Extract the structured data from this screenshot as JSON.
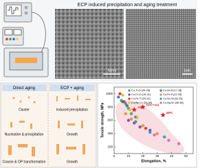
{
  "header": {
    "title": "ECP induced precipitation and aging treatment",
    "scale_bars": [
      "50nm",
      "1nm"
    ]
  },
  "diagram": {
    "left_header": "Direct aging",
    "right_header": "ECP + aging",
    "left_steps": [
      "Cluster",
      "Nucleation & precipitation",
      "Coarse & OP transformation"
    ],
    "right_steps": [
      "Induced precipitation",
      "Growth",
      "Growth"
    ]
  },
  "chart_data": {
    "type": "scatter",
    "x_label": "Elongation, %",
    "y_label": "Tensile strength, MPa",
    "xlim": [
      0,
      55
    ],
    "xticks": [
      0,
      10,
      20,
      30,
      40,
      50
    ],
    "ylim": [
      100,
      1100
    ],
    "yticks": [
      200,
      400,
      600,
      800,
      1000
    ],
    "series": [
      {
        "name": "Cu-Ti-Zr [26-28]",
        "color": "#3aa64a",
        "x": [
          5,
          8,
          10,
          12
        ],
        "values": [
          900,
          850,
          780,
          700
        ]
      },
      {
        "name": "Cu-Ni-Si [17-18]",
        "color": "#2f6fd0",
        "x": [
          3,
          6,
          9,
          15
        ],
        "values": [
          950,
          880,
          820,
          650
        ]
      },
      {
        "name": "Cu-Cr-Zr [19-21]",
        "color": "#7a3fb5",
        "x": [
          10,
          14,
          18,
          25
        ],
        "values": [
          600,
          560,
          500,
          450
        ]
      },
      {
        "name": "Cu-Fe-P [22-25]",
        "color": "#f08a24",
        "x": [
          8,
          12,
          20,
          30
        ],
        "values": [
          700,
          620,
          520,
          400
        ]
      },
      {
        "name": "Cu-Fe-Ti [29-31]",
        "color": "#d9302c",
        "x": [
          4,
          7,
          22
        ],
        "values": [
          1000,
          880,
          480
        ]
      },
      {
        "name": "Cu-Sn-Ni [32-33]",
        "color": "#1fa3a3",
        "x": [
          15,
          25,
          35
        ],
        "values": [
          580,
          420,
          350
        ]
      },
      {
        "name": "Cu-Be-Co [34-35]",
        "color": "#e0c020",
        "x": [
          6,
          11,
          16
        ],
        "values": [
          980,
          760,
          640
        ]
      },
      {
        "name": "Cu-Ag-Sn [36-38]",
        "color": "#e060b0",
        "x": [
          28,
          38,
          45
        ],
        "values": [
          380,
          300,
          250
        ]
      }
    ],
    "highlights": [
      {
        "label": "EPC+AG",
        "x": 20,
        "y": 800
      },
      {
        "label": "AG",
        "x": 14,
        "y": 760
      },
      {
        "label": "EPC",
        "x": 34,
        "y": 680
      }
    ]
  }
}
